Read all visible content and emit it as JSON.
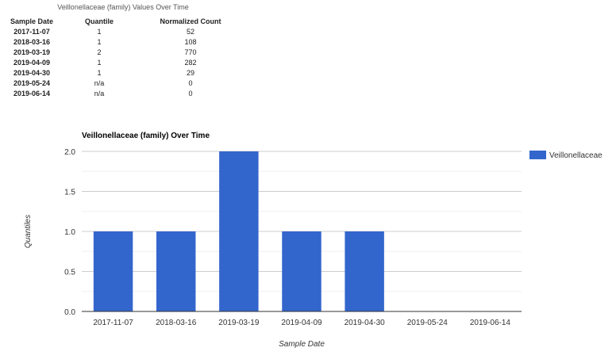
{
  "table": {
    "caption": "Veillonellaceae (family) Values Over Time",
    "headers": [
      "Sample Date",
      "Quantile",
      "Normalized Count"
    ],
    "rows": [
      [
        "2017-11-07",
        "1",
        "52"
      ],
      [
        "2018-03-16",
        "1",
        "108"
      ],
      [
        "2019-03-19",
        "2",
        "770"
      ],
      [
        "2019-04-09",
        "1",
        "282"
      ],
      [
        "2019-04-30",
        "1",
        "29"
      ],
      [
        "2019-05-24",
        "n/a",
        "0"
      ],
      [
        "2019-06-14",
        "n/a",
        "0"
      ]
    ]
  },
  "chart_data": {
    "type": "bar",
    "title": "Veillonellaceae (family) Over Time",
    "xlabel": "Sample Date",
    "ylabel": "Quantiles",
    "categories": [
      "2017-11-07",
      "2018-03-16",
      "2019-03-19",
      "2019-04-09",
      "2019-04-30",
      "2019-05-24",
      "2019-06-14"
    ],
    "series": [
      {
        "name": "Veillonellaceae",
        "values": [
          1,
          1,
          2,
          1,
          1,
          0,
          0
        ]
      }
    ],
    "ylim": [
      0,
      2
    ],
    "yticks": [
      "0.0",
      "0.5",
      "1.0",
      "1.5",
      "2.0"
    ],
    "grid": true,
    "legend": "right",
    "color": "#3366cc"
  }
}
